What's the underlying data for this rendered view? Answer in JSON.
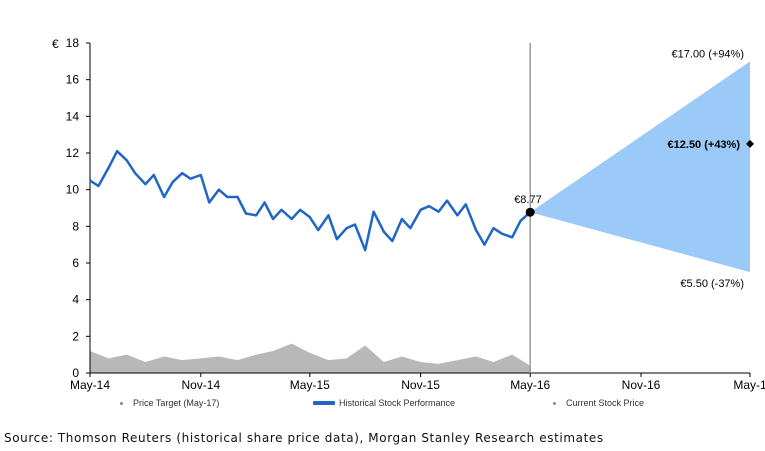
{
  "chart_data": {
    "type": "line",
    "ylabel": "€",
    "ylim": [
      0,
      18
    ],
    "yticks": [
      0,
      2,
      4,
      6,
      8,
      10,
      12,
      14,
      16,
      18
    ],
    "xlim": [
      "2014-05",
      "2017-05"
    ],
    "xtick_labels": [
      "May-14",
      "Nov-14",
      "May-15",
      "Nov-15",
      "May-16",
      "Nov-16",
      "May-1"
    ],
    "grid": false,
    "legend_position": "bottom",
    "series": [
      {
        "name": "Historical Stock Performance",
        "color": "#1f66c5",
        "x": [
          "2014-05-01",
          "2014-05-15",
          "2014-06-01",
          "2014-06-15",
          "2014-07-01",
          "2014-07-15",
          "2014-08-01",
          "2014-08-15",
          "2014-09-01",
          "2014-09-15",
          "2014-10-01",
          "2014-10-15",
          "2014-11-01",
          "2014-11-15",
          "2014-12-01",
          "2014-12-15",
          "2015-01-01",
          "2015-01-15",
          "2015-02-01",
          "2015-02-15",
          "2015-03-01",
          "2015-03-15",
          "2015-04-01",
          "2015-04-15",
          "2015-05-01",
          "2015-05-15",
          "2015-06-01",
          "2015-06-15",
          "2015-07-01",
          "2015-07-15",
          "2015-08-01",
          "2015-08-15",
          "2015-09-01",
          "2015-09-15",
          "2015-10-01",
          "2015-10-15",
          "2015-11-01",
          "2015-11-15",
          "2015-12-01",
          "2015-12-15",
          "2016-01-01",
          "2016-01-15",
          "2016-02-01",
          "2016-02-15",
          "2016-03-01",
          "2016-03-15",
          "2016-04-01",
          "2016-04-15",
          "2016-05-01"
        ],
        "values": [
          10.5,
          10.2,
          11.2,
          12.1,
          11.6,
          10.9,
          10.3,
          10.8,
          9.6,
          10.4,
          10.9,
          10.6,
          10.8,
          9.3,
          10.0,
          9.6,
          9.6,
          8.7,
          8.6,
          9.3,
          8.4,
          8.9,
          8.4,
          8.9,
          8.5,
          7.8,
          8.6,
          7.3,
          7.9,
          8.1,
          6.7,
          8.8,
          7.7,
          7.2,
          8.4,
          7.9,
          8.9,
          9.1,
          8.8,
          9.4,
          8.6,
          9.2,
          7.8,
          7.0,
          7.9,
          7.6,
          7.4,
          8.3,
          8.77
        ]
      },
      {
        "name": "Current Stock Price",
        "x": [
          "2016-05-01"
        ],
        "values": [
          8.77
        ],
        "color": "#000000"
      },
      {
        "name": "Price Target (May-17)",
        "x": [
          "2017-05-01"
        ],
        "values": [
          12.5
        ],
        "color": "#000000"
      },
      {
        "name": "volume",
        "color": "#b8b8b8",
        "x": [
          "2014-05-01",
          "2014-06-01",
          "2014-07-01",
          "2014-08-01",
          "2014-09-01",
          "2014-10-01",
          "2014-11-01",
          "2014-12-01",
          "2015-01-01",
          "2015-02-01",
          "2015-03-01",
          "2015-04-01",
          "2015-05-01",
          "2015-06-01",
          "2015-07-01",
          "2015-08-01",
          "2015-09-01",
          "2015-10-01",
          "2015-11-01",
          "2015-12-01",
          "2016-01-01",
          "2016-02-01",
          "2016-03-01",
          "2016-04-01",
          "2016-05-01"
        ],
        "values": [
          1.2,
          0.8,
          1.0,
          0.6,
          0.9,
          0.7,
          0.8,
          0.9,
          0.7,
          1.0,
          1.2,
          1.6,
          1.1,
          0.7,
          0.8,
          1.5,
          0.6,
          0.9,
          0.6,
          0.5,
          0.7,
          0.9,
          0.6,
          1.0,
          0.4
        ]
      }
    ],
    "band": {
      "x_start": "2016-05-01",
      "x_end": "2017-05-01",
      "start_value": 8.77,
      "upper": 17.0,
      "lower": 5.5,
      "color": "#9ccaf8"
    },
    "annotations": {
      "current": "€8.77",
      "upper": "€17.00 (+94%)",
      "target": "€12.50 (+43%)",
      "lower": "€5.50 (-37%)"
    }
  },
  "legend": {
    "price_target": "Price Target (May-17)",
    "historical": "Historical Stock Performance",
    "current": "Current Stock Price"
  },
  "source": "Source: Thomson Reuters (historical share price data), Morgan Stanley Research estimates"
}
